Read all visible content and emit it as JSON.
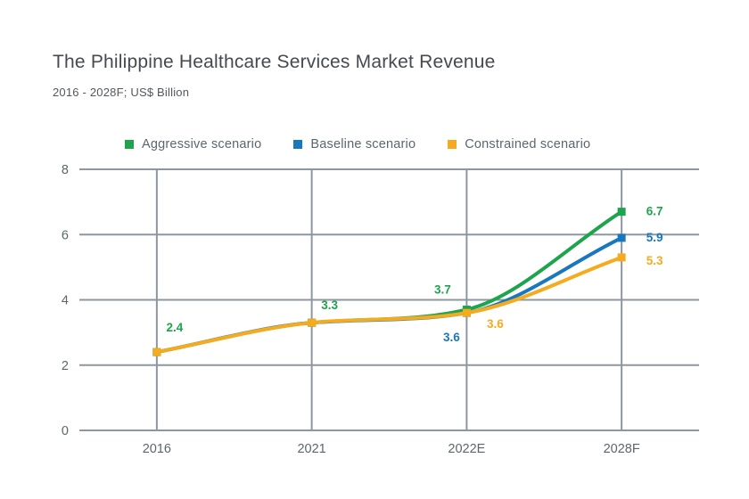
{
  "header": {
    "title": "The Philippine Healthcare Services Market Revenue",
    "subtitle": "2016 - 2028F; US$ Billion"
  },
  "legend": {
    "items": [
      {
        "label": "Aggressive scenario",
        "color": "#1FA44E"
      },
      {
        "label": "Baseline scenario",
        "color": "#1878BE"
      },
      {
        "label": "Constrained scenario",
        "color": "#F4AB1E"
      }
    ]
  },
  "chart_data": {
    "type": "line",
    "title": "The Philippine Healthcare Services Market Revenue",
    "subtitle": "2016 - 2028F; US$ Billion",
    "categories": [
      "2016",
      "2021",
      "2022E",
      "2028F"
    ],
    "series": [
      {
        "name": "Aggressive scenario",
        "color": "#1FA44E",
        "values": [
          2.4,
          3.3,
          3.7,
          6.7
        ],
        "point_labels": [
          {
            "index": 0,
            "text": "2.4",
            "dx": 20,
            "dy": -23
          },
          {
            "index": 1,
            "text": "3.3",
            "dx": 20,
            "dy": -15
          },
          {
            "index": 2,
            "text": "3.7",
            "dx": -27,
            "dy": -18
          },
          {
            "index": 3,
            "text": "6.7",
            "dx": 37,
            "dy": 4
          }
        ]
      },
      {
        "name": "Baseline scenario",
        "color": "#1878BE",
        "values": [
          2.4,
          3.3,
          3.6,
          5.9
        ],
        "point_labels": [
          {
            "index": 2,
            "text": "3.6",
            "dx": -17,
            "dy": 32
          },
          {
            "index": 3,
            "text": "5.9",
            "dx": 37,
            "dy": 4
          }
        ]
      },
      {
        "name": "Constrained scenario",
        "color": "#F4AB1E",
        "values": [
          2.4,
          3.3,
          3.6,
          5.3
        ],
        "point_labels": [
          {
            "index": 2,
            "text": "3.6",
            "dx": 32,
            "dy": 17
          },
          {
            "index": 3,
            "text": "5.3",
            "dx": 37,
            "dy": 8
          }
        ]
      }
    ],
    "xlabel": "",
    "ylabel": "",
    "y_ticks": [
      0,
      2,
      4,
      6,
      8
    ],
    "ylim": [
      0,
      8
    ],
    "grid": true,
    "grid_color": "#8E979F",
    "tick_text_color": "#5C666D",
    "legend_position": "top"
  }
}
